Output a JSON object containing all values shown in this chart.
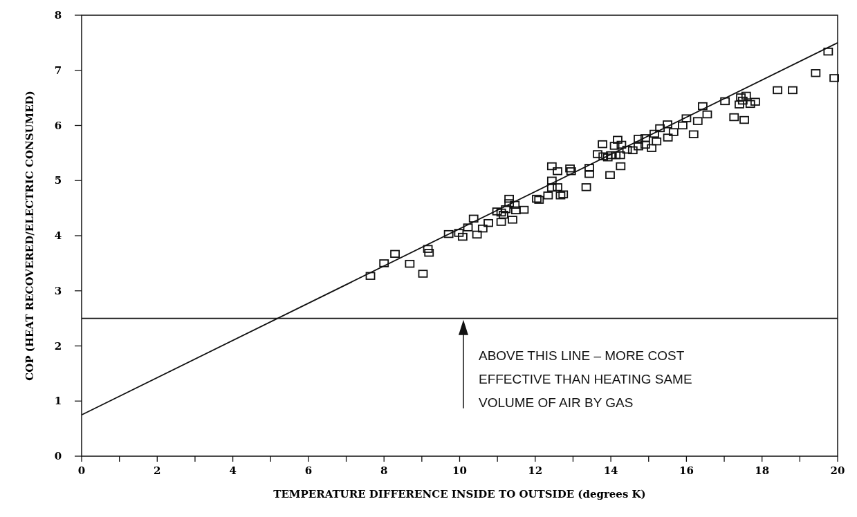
{
  "chart_data": {
    "type": "scatter",
    "xlabel": "TEMPERATURE DIFFERENCE INSIDE TO OUTSIDE (degrees K)",
    "ylabel": "COP (HEAT RECOVERED/ELECTRIC CONSUMED)",
    "xlim": [
      0,
      20
    ],
    "ylim": [
      0,
      8
    ],
    "xticks": [
      0,
      {
        "value": 1,
        "label": null
      },
      2,
      {
        "value": 3,
        "label": null
      },
      4,
      {
        "value": 5,
        "label": null
      },
      6,
      {
        "value": 7,
        "label": null
      },
      8,
      {
        "value": 9,
        "label": null
      },
      10,
      {
        "value": 11,
        "label": null
      },
      12,
      {
        "value": 13,
        "label": null
      },
      14,
      {
        "value": 15,
        "label": null
      },
      16,
      {
        "value": 17,
        "label": null
      },
      18,
      {
        "value": 19,
        "label": null
      },
      20
    ],
    "yticks": [
      0,
      1,
      2,
      3,
      4,
      5,
      6,
      7,
      8
    ],
    "grid": false,
    "marker": "square",
    "series": [
      {
        "color": "#111111",
        "x": [
          7.64,
          8.0,
          8.29,
          8.68,
          9.03,
          9.16,
          9.19,
          9.71,
          9.98,
          10.08,
          10.22,
          10.37,
          10.46,
          10.61,
          10.76,
          10.99,
          11.1,
          11.1,
          11.16,
          11.22,
          11.31,
          11.31,
          11.4,
          11.46,
          11.49,
          11.7,
          12.04,
          12.1,
          12.34,
          12.67,
          12.44,
          12.59,
          12.92,
          12.95,
          12.44,
          12.44,
          12.59,
          12.74,
          13.35,
          13.43,
          13.43,
          13.78,
          13.65,
          13.8,
          13.92,
          14.0,
          14.13,
          14.25,
          13.98,
          14.26,
          14.18,
          14.1,
          14.28,
          14.43,
          14.58,
          14.73,
          14.73,
          14.91,
          14.91,
          15.08,
          15.21,
          15.15,
          15.51,
          15.66,
          16.19,
          15.3,
          15.5,
          15.9,
          16.0,
          16.3,
          16.43,
          16.55,
          17.02,
          17.26,
          17.53,
          17.4,
          17.44,
          17.49,
          17.58,
          17.69,
          17.82,
          18.41,
          18.81,
          19.42,
          19.75,
          19.91
        ],
        "values": [
          3.27,
          3.5,
          3.67,
          3.49,
          3.31,
          3.76,
          3.69,
          4.03,
          4.05,
          3.98,
          4.15,
          4.31,
          4.02,
          4.13,
          4.23,
          4.44,
          4.25,
          4.42,
          4.38,
          4.48,
          4.67,
          4.59,
          4.29,
          4.56,
          4.46,
          4.47,
          4.67,
          4.65,
          4.73,
          4.73,
          5.26,
          5.17,
          5.22,
          5.17,
          5.0,
          4.87,
          4.88,
          4.75,
          4.88,
          5.23,
          5.12,
          5.66,
          5.48,
          5.44,
          5.42,
          5.46,
          5.46,
          5.46,
          5.1,
          5.26,
          5.74,
          5.63,
          5.65,
          5.56,
          5.55,
          5.62,
          5.76,
          5.77,
          5.65,
          5.59,
          5.71,
          5.85,
          5.78,
          5.88,
          5.84,
          5.95,
          6.02,
          6.0,
          6.13,
          6.08,
          6.35,
          6.2,
          6.44,
          6.15,
          6.1,
          6.38,
          6.51,
          6.45,
          6.54,
          6.39,
          6.43,
          6.64,
          6.64,
          6.95,
          7.34,
          6.86
        ]
      },
      {
        "type": "line",
        "marker": "none",
        "color": "#111111",
        "x": [
          0,
          20
        ],
        "values": [
          0.75,
          7.5
        ]
      }
    ],
    "ref_lines": [
      {
        "axis": "y",
        "value": 2.5,
        "color": "#111111"
      }
    ],
    "annotations": [
      {
        "text": "ABOVE THIS LINE – MORE COST\nEFFECTIVE THAN HEATING SAME\nVOLUME OF AIR BY GAS",
        "x": 10.1,
        "y": 2.5
      }
    ]
  }
}
